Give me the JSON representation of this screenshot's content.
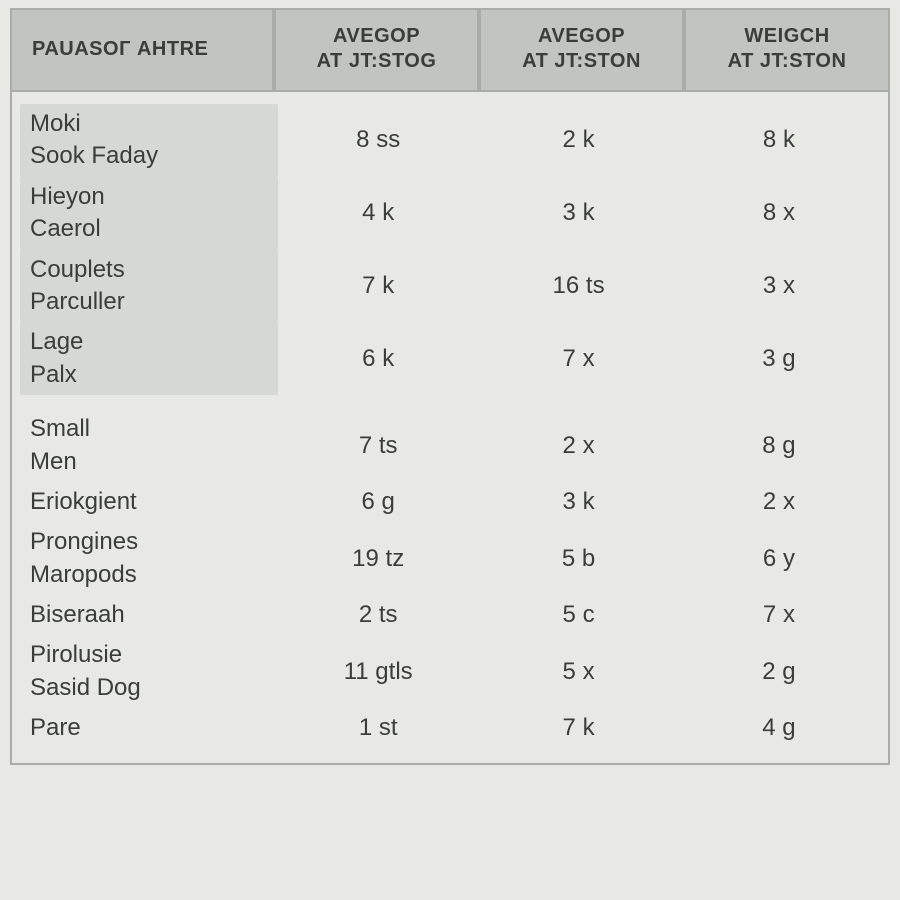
{
  "table": {
    "type": "table",
    "background_color": "#e8e9e5",
    "border_color": "#a9aca8",
    "header_bg": "#c1c4c0",
    "shade_bg": "#d6d8d4",
    "text_color": "#3a3d3a",
    "header_fontsize": 20,
    "body_fontsize": 24,
    "column_widths_pct": [
      30,
      23.3,
      23.3,
      23.4
    ],
    "columns": [
      {
        "title": "PAUASOГ AHTRE",
        "sub": ""
      },
      {
        "title": "AVEGOP",
        "sub": "AT JT:STOG"
      },
      {
        "title": "AVEGOP",
        "sub": "AT JT:STON"
      },
      {
        "title": "WEIGCH",
        "sub": "AT JT:STON"
      }
    ],
    "group1": [
      {
        "l1": "Moki",
        "l2": "Sook Faday",
        "v1": "8 ss",
        "v2": "2 k",
        "v3": "8 k"
      },
      {
        "l1": "Hieyon",
        "l2": "Caerol",
        "v1": "4 k",
        "v2": "3 k",
        "v3": "8 x"
      },
      {
        "l1": "Couplets",
        "l2": "Parculler",
        "v1": "7 k",
        "v2": "16 ts",
        "v3": "3 x"
      },
      {
        "l1": "Lage",
        "l2": "Palx",
        "v1": "6 k",
        "v2": "7 x",
        "v3": "3 g"
      }
    ],
    "group2": [
      {
        "l1": "Small",
        "l2": "Men",
        "v1": "7 ts",
        "v2": "2 x",
        "v3": "8 g"
      },
      {
        "l1": "Eriokgient",
        "l2": "",
        "v1": "6 g",
        "v2": "3 k",
        "v3": "2 x"
      },
      {
        "l1": "Prongines",
        "l2": "Maropods",
        "v1": "19 tz",
        "v2": "5 b",
        "v3": "6 y"
      },
      {
        "l1": "Biseraah",
        "l2": "",
        "v1": "2 ts",
        "v2": "5 c",
        "v3": "7 x"
      },
      {
        "l1": "Pirolusie",
        "l2": "Sasid Dog",
        "v1": "11 gtls",
        "v2": "5 x",
        "v3": "2 g"
      },
      {
        "l1": "Pare",
        "l2": "",
        "v1": "1 st",
        "v2": "7 k",
        "v3": "4 g"
      }
    ]
  }
}
